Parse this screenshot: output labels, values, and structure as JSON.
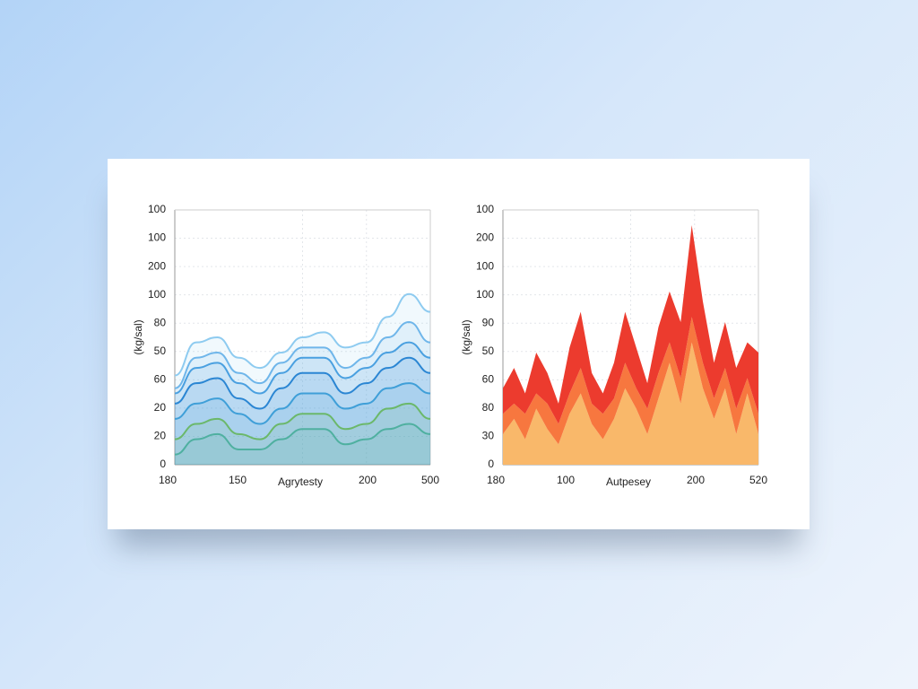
{
  "chart_data": [
    {
      "type": "line",
      "y_axis_label": "(kg/sal)",
      "y_labels": [
        "100",
        "100",
        "200",
        "100",
        "80",
        "50",
        "60",
        "20",
        "20",
        "0"
      ],
      "x_labels": [
        "180",
        "150",
        "200",
        "500"
      ],
      "x_axis_label": "Agrytesty",
      "ylim": [
        0,
        100
      ],
      "fill": true,
      "series": [
        {
          "color": "#8ecbf0",
          "values": [
            35,
            48,
            50,
            42,
            38,
            44,
            50,
            52,
            46,
            48,
            58,
            67,
            60
          ]
        },
        {
          "color": "#6fb6ea",
          "values": [
            30,
            42,
            44,
            36,
            32,
            40,
            46,
            46,
            38,
            42,
            50,
            56,
            48
          ]
        },
        {
          "color": "#4aa0e0",
          "values": [
            28,
            38,
            40,
            32,
            28,
            36,
            42,
            42,
            34,
            38,
            44,
            48,
            42
          ]
        },
        {
          "color": "#2b86d3",
          "values": [
            24,
            32,
            34,
            26,
            22,
            30,
            36,
            36,
            28,
            32,
            38,
            42,
            36
          ]
        },
        {
          "color": "#3f9fd8",
          "values": [
            18,
            24,
            26,
            20,
            16,
            22,
            28,
            28,
            22,
            24,
            30,
            32,
            28
          ]
        },
        {
          "color": "#6bb86a",
          "values": [
            10,
            16,
            18,
            12,
            10,
            16,
            20,
            20,
            14,
            16,
            22,
            24,
            18
          ]
        },
        {
          "color": "#4fb0a0",
          "values": [
            4,
            10,
            12,
            6,
            6,
            10,
            14,
            14,
            8,
            10,
            14,
            16,
            12
          ]
        }
      ]
    },
    {
      "type": "stacked_area",
      "y_axis_label": "(kg/sal)",
      "y_labels": [
        "100",
        "200",
        "100",
        "100",
        "90",
        "50",
        "60",
        "80",
        "30",
        "0"
      ],
      "x_labels": [
        "180",
        "100",
        "200",
        "520"
      ],
      "x_axis_label": "Autpesey",
      "ylim": [
        0,
        100
      ],
      "series": [
        {
          "color": "#f9b86a",
          "values": [
            12,
            18,
            10,
            22,
            14,
            8,
            20,
            28,
            16,
            10,
            18,
            30,
            22,
            12,
            26,
            40,
            24,
            48,
            30,
            18,
            30,
            12,
            28,
            12
          ]
        },
        {
          "color": "#f7773f",
          "values": [
            8,
            6,
            10,
            6,
            10,
            8,
            8,
            10,
            8,
            10,
            8,
            10,
            8,
            10,
            10,
            8,
            10,
            10,
            10,
            8,
            8,
            10,
            6,
            8
          ]
        },
        {
          "color": "#ec3b2e",
          "values": [
            10,
            14,
            8,
            16,
            12,
            8,
            18,
            22,
            12,
            8,
            14,
            20,
            16,
            10,
            18,
            20,
            22,
            36,
            24,
            14,
            18,
            16,
            14,
            24
          ]
        }
      ]
    }
  ]
}
